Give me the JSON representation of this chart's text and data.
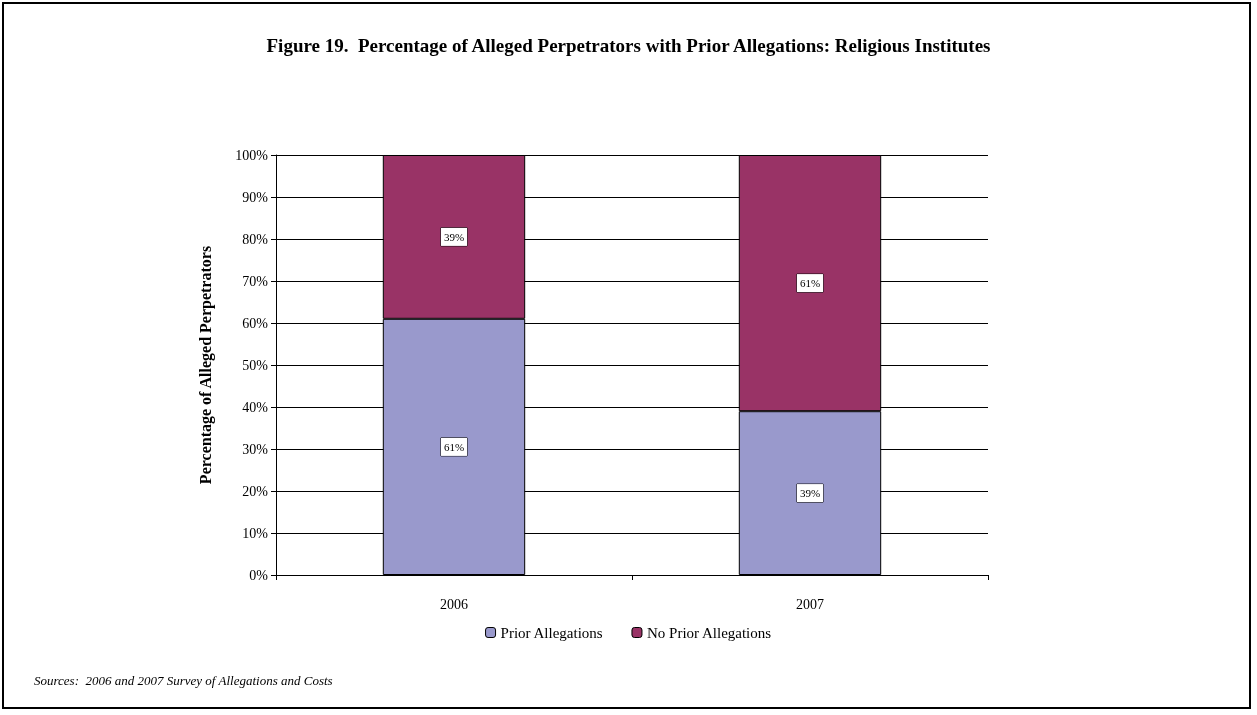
{
  "chart_data": {
    "type": "bar",
    "title": "Figure 19.  Percentage of Alleged Perpetrators with Prior Allegations: Religious Institutes",
    "ylabel": "Percentage of Alleged Perpetrators",
    "categories": [
      "2006",
      "2007"
    ],
    "stacked": true,
    "series": [
      {
        "name": "Prior Allegations",
        "color": "#9999cc",
        "values": [
          61,
          39
        ],
        "value_labels": [
          "61%",
          "39%"
        ]
      },
      {
        "name": "No Prior Allegations",
        "color": "#993366",
        "values": [
          39,
          61
        ],
        "value_labels": [
          "39%",
          "61%"
        ]
      }
    ],
    "ylim": [
      0,
      100
    ],
    "yticks": [
      {
        "value": 0,
        "label": "0%"
      },
      {
        "value": 10,
        "label": "10%"
      },
      {
        "value": 20,
        "label": "20%"
      },
      {
        "value": 30,
        "label": "30%"
      },
      {
        "value": 40,
        "label": "40%"
      },
      {
        "value": 50,
        "label": "50%"
      },
      {
        "value": 60,
        "label": "60%"
      },
      {
        "value": 70,
        "label": "70%"
      },
      {
        "value": 80,
        "label": "80%"
      },
      {
        "value": 90,
        "label": "90%"
      },
      {
        "value": 100,
        "label": "100%"
      }
    ],
    "grid": "y",
    "legend": "bottom",
    "annotations": [
      "Sources:  2006 and 2007 Survey of Allegations and Costs"
    ]
  }
}
